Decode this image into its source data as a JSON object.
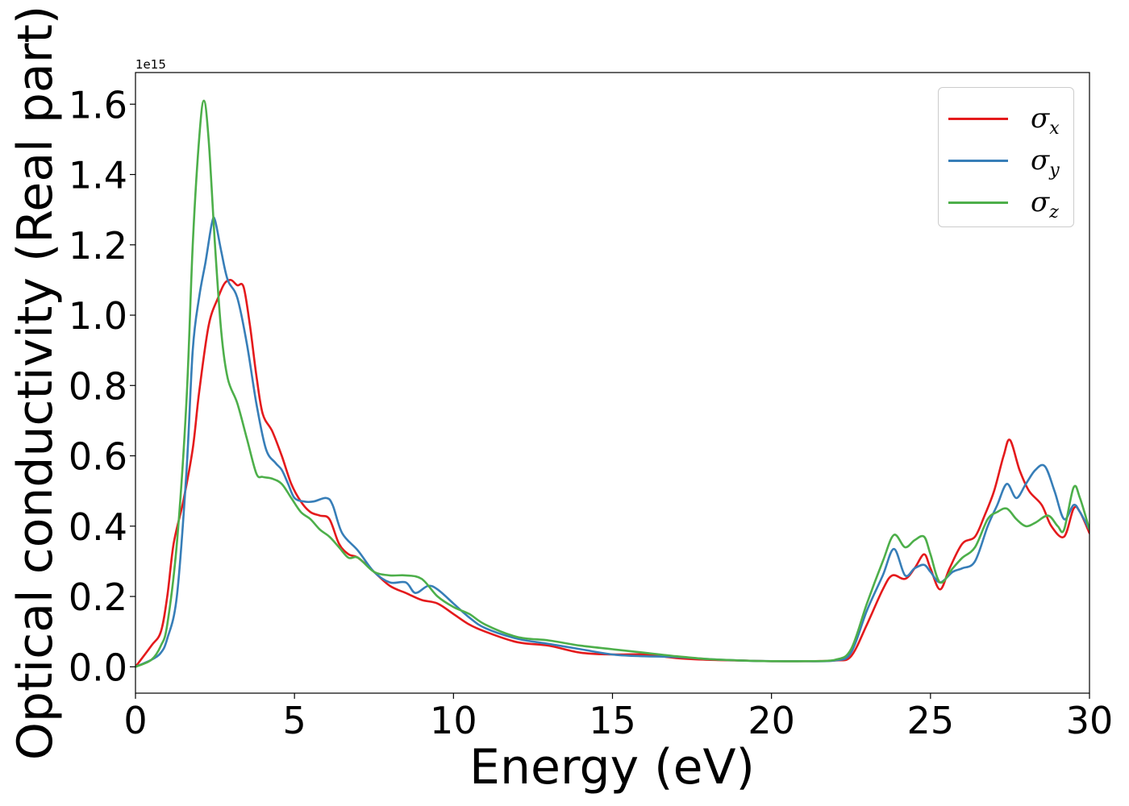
{
  "chart_data": {
    "type": "line",
    "title": "",
    "xlabel": "Energy (eV)",
    "ylabel": "Optical conductivity (Real part)",
    "offset_text": "1e15",
    "xlim": [
      0,
      30
    ],
    "ylim": [
      -0.075,
      1.69
    ],
    "x_ticks": [
      0,
      5,
      10,
      15,
      20,
      25,
      30
    ],
    "x_tick_labels": [
      "0",
      "5",
      "10",
      "15",
      "20",
      "25",
      "30"
    ],
    "y_ticks": [
      0.0,
      0.2,
      0.4,
      0.6,
      0.8,
      1.0,
      1.2,
      1.4,
      1.6
    ],
    "y_tick_labels": [
      "0.0",
      "0.2",
      "0.4",
      "0.6",
      "0.8",
      "1.0",
      "1.2",
      "1.4",
      "1.6"
    ],
    "grid": false,
    "legend": "top-right",
    "series": [
      {
        "name": "σx",
        "symbol": "σ",
        "subscript": "x",
        "color": "#e41a1c",
        "x": [
          0,
          0.5,
          0.8,
          1.0,
          1.2,
          1.5,
          1.8,
          2.0,
          2.3,
          2.6,
          2.8,
          3.0,
          3.2,
          3.4,
          3.6,
          3.8,
          4.0,
          4.3,
          4.6,
          4.9,
          5.2,
          5.5,
          5.8,
          6.1,
          6.4,
          6.7,
          7.0,
          7.5,
          8.0,
          8.5,
          9.0,
          9.5,
          10.0,
          10.5,
          11.0,
          12.0,
          13.0,
          14.0,
          15.0,
          16.0,
          17.0,
          18.0,
          19.0,
          20.0,
          21.0,
          22.0,
          22.5,
          23.0,
          23.5,
          23.8,
          24.2,
          24.5,
          24.8,
          25.0,
          25.3,
          25.6,
          26.0,
          26.4,
          26.7,
          27.0,
          27.3,
          27.5,
          27.8,
          28.1,
          28.5,
          28.8,
          29.2,
          29.5,
          29.7,
          30.0
        ],
        "values": [
          0.0,
          0.06,
          0.1,
          0.2,
          0.35,
          0.47,
          0.62,
          0.78,
          0.97,
          1.05,
          1.09,
          1.1,
          1.085,
          1.08,
          0.97,
          0.83,
          0.72,
          0.67,
          0.6,
          0.52,
          0.47,
          0.44,
          0.43,
          0.42,
          0.35,
          0.32,
          0.31,
          0.27,
          0.23,
          0.21,
          0.19,
          0.18,
          0.15,
          0.12,
          0.1,
          0.07,
          0.06,
          0.04,
          0.035,
          0.035,
          0.025,
          0.02,
          0.018,
          0.016,
          0.016,
          0.018,
          0.03,
          0.12,
          0.22,
          0.26,
          0.25,
          0.28,
          0.32,
          0.28,
          0.22,
          0.28,
          0.35,
          0.37,
          0.43,
          0.5,
          0.6,
          0.645,
          0.56,
          0.5,
          0.46,
          0.4,
          0.37,
          0.45,
          0.44,
          0.38
        ]
      },
      {
        "name": "σy",
        "symbol": "σ",
        "subscript": "y",
        "color": "#377eb8",
        "x": [
          0,
          0.5,
          0.8,
          1.0,
          1.3,
          1.6,
          1.8,
          2.0,
          2.2,
          2.4,
          2.5,
          2.7,
          2.9,
          3.2,
          3.5,
          3.8,
          4.1,
          4.4,
          4.6,
          4.8,
          5.0,
          5.3,
          5.6,
          6.0,
          6.2,
          6.5,
          7.0,
          7.5,
          8.0,
          8.5,
          8.8,
          9.2,
          9.5,
          10.0,
          10.5,
          11.0,
          12.0,
          13.0,
          14.0,
          15.0,
          16.0,
          17.0,
          18.0,
          19.0,
          20.0,
          21.0,
          22.0,
          22.5,
          23.0,
          23.5,
          23.85,
          24.2,
          24.5,
          24.8,
          25.0,
          25.3,
          25.7,
          26.0,
          26.4,
          26.8,
          27.1,
          27.4,
          27.7,
          28.0,
          28.3,
          28.6,
          28.9,
          29.2,
          29.5,
          29.7,
          30.0
        ],
        "values": [
          0.0,
          0.02,
          0.04,
          0.08,
          0.2,
          0.55,
          0.9,
          1.05,
          1.15,
          1.26,
          1.27,
          1.18,
          1.1,
          1.05,
          0.92,
          0.75,
          0.62,
          0.58,
          0.56,
          0.52,
          0.48,
          0.47,
          0.47,
          0.48,
          0.46,
          0.38,
          0.33,
          0.27,
          0.24,
          0.24,
          0.21,
          0.23,
          0.22,
          0.18,
          0.14,
          0.11,
          0.08,
          0.065,
          0.05,
          0.035,
          0.03,
          0.028,
          0.022,
          0.018,
          0.016,
          0.016,
          0.018,
          0.04,
          0.16,
          0.26,
          0.335,
          0.26,
          0.28,
          0.29,
          0.27,
          0.24,
          0.27,
          0.28,
          0.3,
          0.4,
          0.46,
          0.52,
          0.48,
          0.52,
          0.56,
          0.57,
          0.5,
          0.42,
          0.46,
          0.44,
          0.39
        ]
      },
      {
        "name": "σz",
        "symbol": "σ",
        "subscript": "z",
        "color": "#4daf4a",
        "x": [
          0,
          0.5,
          0.8,
          1.0,
          1.3,
          1.6,
          1.8,
          2.0,
          2.15,
          2.3,
          2.5,
          2.7,
          2.9,
          3.2,
          3.5,
          3.8,
          4.0,
          4.3,
          4.6,
          4.9,
          5.2,
          5.5,
          5.8,
          6.1,
          6.4,
          6.7,
          7.0,
          7.5,
          8.0,
          8.5,
          9.0,
          9.5,
          10.0,
          10.5,
          11.0,
          12.0,
          13.0,
          14.0,
          15.0,
          16.0,
          17.0,
          18.0,
          19.0,
          20.0,
          21.0,
          22.0,
          22.5,
          23.0,
          23.5,
          23.85,
          24.2,
          24.5,
          24.8,
          25.0,
          25.3,
          25.7,
          26.0,
          26.4,
          26.8,
          27.1,
          27.4,
          27.7,
          28.0,
          28.3,
          28.7,
          29.0,
          29.2,
          29.5,
          29.7,
          30.0
        ],
        "values": [
          0.0,
          0.02,
          0.06,
          0.12,
          0.35,
          0.75,
          1.2,
          1.5,
          1.61,
          1.5,
          1.2,
          0.95,
          0.82,
          0.75,
          0.65,
          0.55,
          0.54,
          0.535,
          0.52,
          0.48,
          0.44,
          0.42,
          0.39,
          0.37,
          0.34,
          0.31,
          0.31,
          0.27,
          0.26,
          0.26,
          0.25,
          0.2,
          0.17,
          0.15,
          0.12,
          0.085,
          0.075,
          0.06,
          0.05,
          0.04,
          0.03,
          0.022,
          0.018,
          0.016,
          0.016,
          0.02,
          0.05,
          0.18,
          0.3,
          0.375,
          0.34,
          0.36,
          0.37,
          0.32,
          0.24,
          0.28,
          0.31,
          0.34,
          0.42,
          0.44,
          0.45,
          0.42,
          0.4,
          0.41,
          0.43,
          0.4,
          0.39,
          0.51,
          0.48,
          0.39
        ]
      }
    ]
  }
}
